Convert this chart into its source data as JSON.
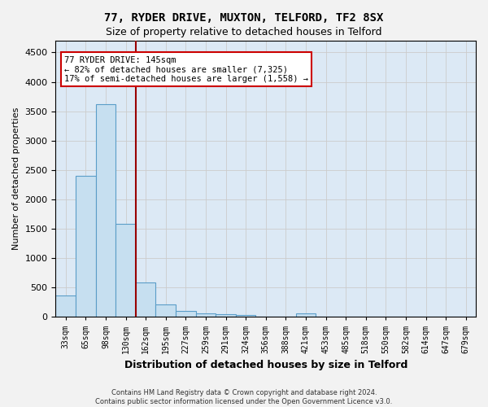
{
  "title_line1": "77, RYDER DRIVE, MUXTON, TELFORD, TF2 8SX",
  "title_line2": "Size of property relative to detached houses in Telford",
  "xlabel": "Distribution of detached houses by size in Telford",
  "ylabel": "Number of detached properties",
  "footer_line1": "Contains HM Land Registry data © Crown copyright and database right 2024.",
  "footer_line2": "Contains public sector information licensed under the Open Government Licence v3.0.",
  "bins": [
    "33sqm",
    "65sqm",
    "98sqm",
    "130sqm",
    "162sqm",
    "195sqm",
    "227sqm",
    "259sqm",
    "291sqm",
    "324sqm",
    "356sqm",
    "388sqm",
    "421sqm",
    "453sqm",
    "485sqm",
    "518sqm",
    "550sqm",
    "582sqm",
    "614sqm",
    "647sqm",
    "679sqm"
  ],
  "values": [
    360,
    2400,
    3620,
    1580,
    590,
    220,
    100,
    65,
    45,
    40,
    0,
    0,
    55,
    0,
    0,
    0,
    0,
    0,
    0,
    0,
    0
  ],
  "bar_color": "#c6dff0",
  "bar_edge_color": "#5a9dc8",
  "bar_edge_width": 0.8,
  "vline_color": "#990000",
  "vline_x": 3.5,
  "ylim": [
    0,
    4700
  ],
  "yticks": [
    0,
    500,
    1000,
    1500,
    2000,
    2500,
    3000,
    3500,
    4000,
    4500
  ],
  "annotation_text_line1": "77 RYDER DRIVE: 145sqm",
  "annotation_text_line2": "← 82% of detached houses are smaller (7,325)",
  "annotation_text_line3": "17% of semi-detached houses are larger (1,558) →",
  "annotation_box_color": "#ffffff",
  "annotation_box_edge": "#cc0000",
  "grid_color": "#cccccc",
  "background_color": "#dce9f5",
  "fig_background": "#f2f2f2"
}
